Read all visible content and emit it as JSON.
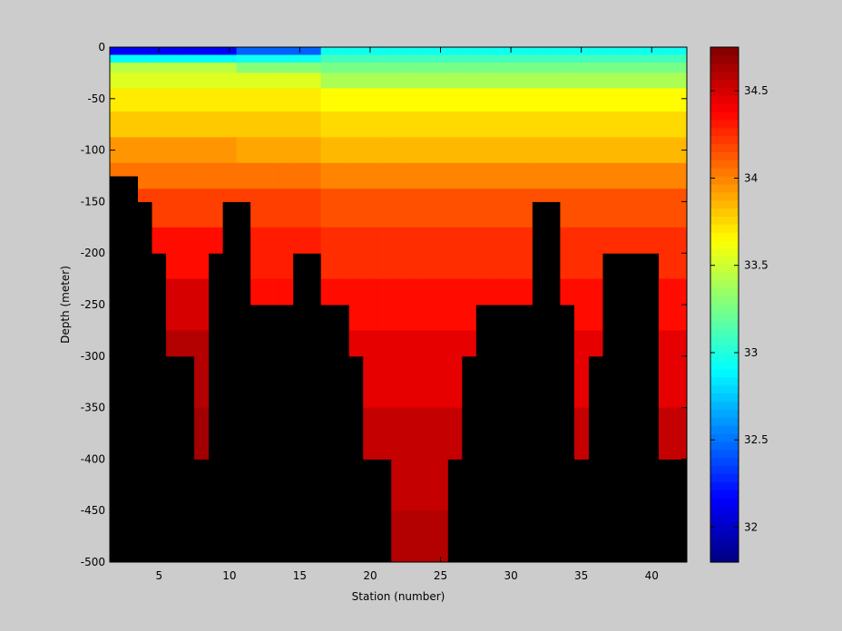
{
  "chart_data": {
    "type": "heatmap",
    "title": "",
    "xlabel": "Station (number)",
    "ylabel": "Depth (meter)",
    "xlim": [
      1.5,
      42.5
    ],
    "ylim": [
      -500,
      0
    ],
    "grid": false,
    "x_ticks": [
      5,
      10,
      15,
      20,
      25,
      30,
      35,
      40
    ],
    "y_ticks": [
      0,
      -50,
      -100,
      -150,
      -200,
      -250,
      -300,
      -350,
      -400,
      -450,
      -500
    ],
    "no_data_color": "#000000",
    "stations": [
      2,
      3,
      4,
      5,
      6,
      7,
      8,
      9,
      10,
      11,
      12,
      13,
      14,
      15,
      16,
      17,
      18,
      19,
      20,
      21,
      22,
      23,
      24,
      25,
      26,
      27,
      28,
      29,
      30,
      31,
      32,
      33,
      34,
      35,
      36,
      37,
      38,
      39,
      40,
      41,
      42
    ],
    "depth_levels": [
      -5,
      -10,
      -20,
      -30,
      -50,
      -75,
      -100,
      -125,
      -150,
      -200,
      -250,
      -300,
      -400,
      -500
    ],
    "max_depth_by_station": [
      -125,
      -125,
      -150,
      -200,
      -300,
      -300,
      -400,
      -200,
      -150,
      -150,
      -250,
      -250,
      -250,
      -200,
      -200,
      -250,
      -250,
      -300,
      -400,
      -400,
      -500,
      -500,
      -500,
      -500,
      -400,
      -300,
      -250,
      -250,
      -250,
      -250,
      -150,
      -150,
      -250,
      -400,
      -300,
      -200,
      -200,
      -200,
      -200,
      -400,
      -400
    ],
    "value_profiles": {
      "A": [
        32.15,
        32.9,
        33.45,
        33.55,
        33.7,
        33.8,
        33.95,
        34.05,
        34.2,
        34.35,
        34.5,
        34.6,
        34.65,
        34.65
      ],
      "B": [
        32.45,
        32.95,
        33.3,
        33.55,
        33.7,
        33.8,
        33.9,
        34.05,
        34.2,
        34.3,
        34.35,
        34.45,
        34.55,
        34.6
      ],
      "C": [
        32.95,
        33.1,
        33.25,
        33.4,
        33.65,
        33.75,
        33.85,
        34.0,
        34.15,
        34.25,
        34.35,
        34.45,
        34.55,
        34.6
      ]
    },
    "station_profile_groups": [
      {
        "from": 2,
        "to": 10,
        "profile": "A"
      },
      {
        "from": 11,
        "to": 16,
        "profile": "B"
      },
      {
        "from": 17,
        "to": 42,
        "profile": "C"
      }
    ],
    "colorbar": {
      "min": 31.8,
      "max": 34.75,
      "ticks": [
        32,
        32.5,
        33,
        33.5,
        34,
        34.5
      ],
      "colormap": "jet"
    }
  }
}
